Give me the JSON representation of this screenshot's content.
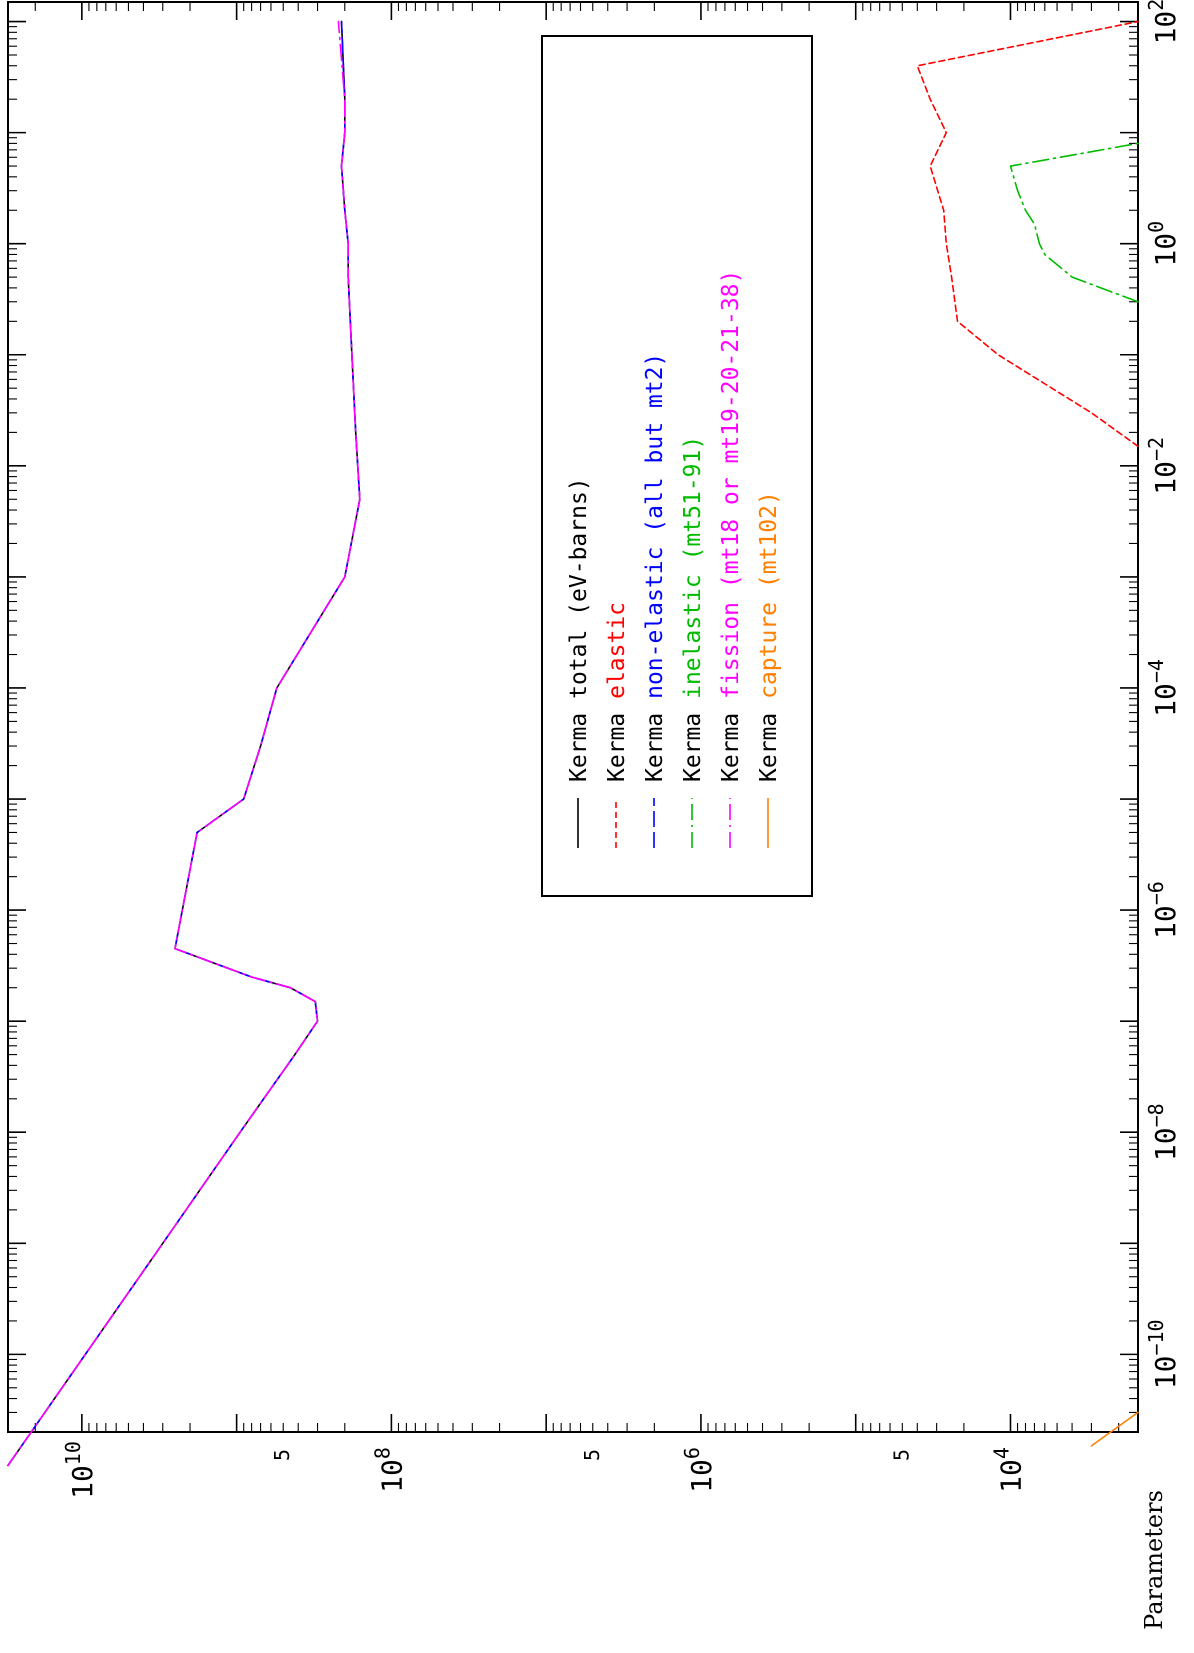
{
  "chart_data": {
    "type": "line",
    "orientation": "rotated-90",
    "title": "",
    "xlabel": "",
    "ylabel": "Parameters",
    "x_scale": "log",
    "y_scale": "log",
    "xlim": [
      2e-11,
      150
    ],
    "ylim": [
      1500,
      30000000000.0
    ],
    "x_ticks": [
      {
        "base": "10",
        "exp": "−10"
      },
      {
        "base": "10",
        "exp": "−8"
      },
      {
        "base": "10",
        "exp": "−6"
      },
      {
        "base": "10",
        "exp": "−4"
      },
      {
        "base": "10",
        "exp": "−2"
      },
      {
        "base": "10",
        "exp": "0"
      },
      {
        "base": "10",
        "exp": "2"
      }
    ],
    "y_ticks": [
      {
        "base": "10",
        "exp": "4"
      },
      {
        "base": "10",
        "exp": "6"
      },
      {
        "base": "10",
        "exp": "8"
      },
      {
        "base": "10",
        "exp": "10"
      }
    ],
    "y_minor_label": "5",
    "legend": {
      "placement": "upper-right",
      "entries": [
        {
          "prefix": "Kerma",
          "name": "total  (eV-barns)",
          "color": "#000000",
          "dash": "solid"
        },
        {
          "prefix": "Kerma",
          "name": "elastic",
          "color": "#ff0000",
          "dash": "short-dash"
        },
        {
          "prefix": "Kerma",
          "name": "non-elastic (all but mt2)",
          "color": "#0000ff",
          "dash": "long-dash"
        },
        {
          "prefix": "Kerma",
          "name": "inelastic (mt51-91)",
          "color": "#00bb00",
          "dash": "dash-dot"
        },
        {
          "prefix": "Kerma",
          "name": "fission (mt18 or mt19-20-21-38)",
          "color": "#ff00ff",
          "dash": "dash-dot"
        },
        {
          "prefix": "Kerma",
          "name": "capture (mt102)",
          "color": "#ff8000",
          "dash": "solid"
        }
      ]
    },
    "series": [
      {
        "name": "Kerma total  (eV-barns)",
        "color": "#000000",
        "x": [
          1e-11,
          1e-10,
          1e-09,
          1e-08,
          5e-08,
          1e-07,
          1.5e-07,
          2e-07,
          2.5e-07,
          4.5e-07,
          5e-06,
          1e-05,
          3e-05,
          0.0001,
          0.001,
          0.005,
          0.02,
          0.1,
          0.5,
          1,
          2,
          5,
          10,
          20,
          100
        ],
        "y": [
          30000000000.0,
          9500000000.0,
          3000000000.0,
          950000000.0,
          420000000.0,
          300000000.0,
          310000000.0,
          450000000.0,
          800000000.0,
          2500000000.0,
          1800000000.0,
          900000000.0,
          700000000.0,
          550000000.0,
          200000000.0,
          160000000.0,
          170000000.0,
          180000000.0,
          190000000.0,
          190000000.0,
          200000000.0,
          210000000.0,
          200000000.0,
          200000000.0,
          210000000.0
        ]
      },
      {
        "name": "Kerma elastic",
        "color": "#ff0000",
        "x": [
          0.015,
          0.03,
          0.1,
          0.2,
          0.5,
          1,
          2,
          5,
          10,
          20,
          40,
          100
        ],
        "y": [
          1500,
          3000,
          12000,
          22000,
          24000,
          26000,
          27000,
          33000,
          26000,
          33000,
          40000,
          1500
        ]
      },
      {
        "name": "Kerma non-elastic (all but mt2)",
        "color": "#0000ff",
        "x": [
          1e-11,
          1e-10,
          1e-09,
          1e-08,
          5e-08,
          1e-07,
          1.5e-07,
          2e-07,
          2.5e-07,
          4.5e-07,
          5e-06,
          1e-05,
          3e-05,
          0.0001,
          0.001,
          0.005,
          0.02,
          0.1,
          0.5,
          1,
          2,
          5,
          10,
          20,
          100
        ],
        "y": [
          30000000000.0,
          9500000000.0,
          3000000000.0,
          950000000.0,
          420000000.0,
          300000000.0,
          310000000.0,
          450000000.0,
          800000000.0,
          2500000000.0,
          1800000000.0,
          900000000.0,
          700000000.0,
          550000000.0,
          200000000.0,
          160000000.0,
          170000000.0,
          180000000.0,
          190000000.0,
          190000000.0,
          200000000.0,
          210000000.0,
          200000000.0,
          200000000.0,
          210000000.0
        ]
      },
      {
        "name": "Kerma inelastic (mt51-91)",
        "color": "#00bb00",
        "x": [
          0.3,
          0.5,
          0.8,
          1.0,
          1.5,
          2,
          3,
          5,
          8
        ],
        "y": [
          1500,
          4000,
          6000,
          6500,
          7000,
          8000,
          9000,
          10000,
          1500
        ]
      },
      {
        "name": "Kerma fission (mt18 or mt19-20-21-38)",
        "color": "#ff00ff",
        "x": [
          1e-11,
          1e-10,
          1e-09,
          1e-08,
          5e-08,
          1e-07,
          1.5e-07,
          2e-07,
          2.5e-07,
          4.5e-07,
          5e-06,
          1e-05,
          3e-05,
          0.0001,
          0.001,
          0.005,
          0.02,
          0.1,
          0.5,
          1,
          2,
          5,
          10,
          20,
          100
        ],
        "y": [
          30000000000.0,
          9500000000.0,
          3000000000.0,
          950000000.0,
          420000000.0,
          300000000.0,
          310000000.0,
          450000000.0,
          800000000.0,
          2500000000.0,
          1800000000.0,
          900000000.0,
          700000000.0,
          550000000.0,
          200000000.0,
          160000000.0,
          170000000.0,
          180000000.0,
          190000000.0,
          190000000.0,
          200000000.0,
          210000000.0,
          200000000.0,
          200000000.0,
          220000000.0
        ]
      },
      {
        "name": "Kerma capture (mt102)",
        "color": "#ff8000",
        "x": [
          1.5e-11,
          3e-11
        ],
        "y": [
          3000,
          1500
        ]
      }
    ]
  }
}
